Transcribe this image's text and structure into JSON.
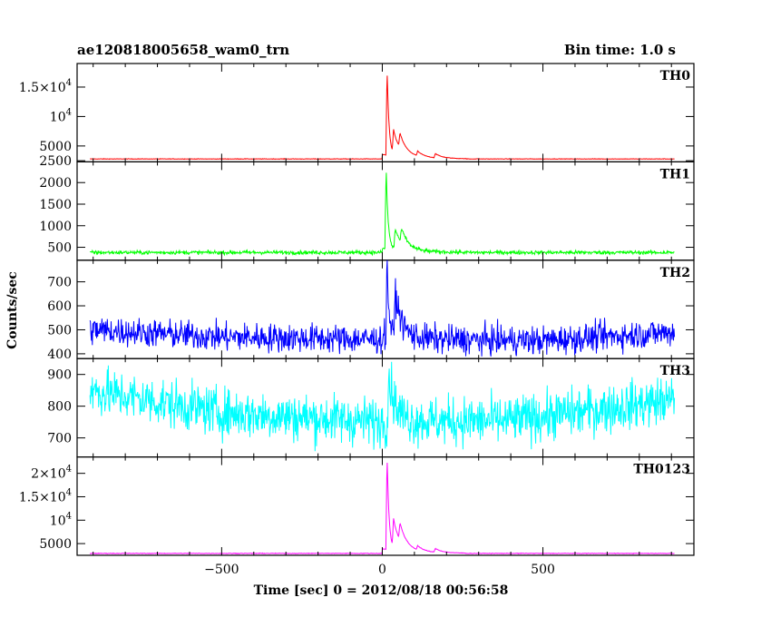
{
  "chart_data": {
    "type": "line",
    "title_left": "ae120818005658_wam0_trn",
    "title_right": "Bin time: 1.0 s",
    "xlabel": "Time [sec] 0 = 2012/08/18 00:56:58",
    "ylabel": "Counts/sec",
    "xlim": [
      -950,
      970
    ],
    "x_ticks": [
      -500,
      0,
      500
    ],
    "x_tick_labels": [
      "−500",
      "0",
      "500"
    ],
    "x_data_range": [
      -910,
      910
    ],
    "burst_time": 0,
    "grid": false,
    "panels": [
      {
        "name": "TH0",
        "color": "#ff0000",
        "ylim": [
          2300,
          19000
        ],
        "y_ticks": [
          2500,
          5000,
          10000,
          15000
        ],
        "y_tick_labels": [
          {
            "base": "2500"
          },
          {
            "base": "5000"
          },
          {
            "base": "10",
            "exp": "4"
          },
          {
            "base": "1.5×10",
            "exp": "4"
          }
        ],
        "baseline": 2800,
        "noise": 40,
        "features": [
          {
            "t": 15,
            "peak": 17500
          },
          {
            "t": 35,
            "peak": 6800
          },
          {
            "t": 55,
            "peak": 5200
          },
          {
            "t": 110,
            "peak": 3600
          },
          {
            "t": 165,
            "peak": 3500
          }
        ]
      },
      {
        "name": "TH1",
        "color": "#00ff00",
        "ylim": [
          200,
          2480
        ],
        "y_ticks": [
          500,
          1000,
          1500,
          2000
        ],
        "y_tick_labels": [
          {
            "base": "500"
          },
          {
            "base": "1000"
          },
          {
            "base": "1500"
          },
          {
            "base": "2000"
          }
        ],
        "baseline": 380,
        "noise": 40,
        "features": [
          {
            "t": 12,
            "peak": 2300
          },
          {
            "t": 40,
            "peak": 850
          },
          {
            "t": 60,
            "peak": 700
          }
        ]
      },
      {
        "name": "TH2",
        "color": "#0000ff",
        "ylim": [
          380,
          790
        ],
        "y_ticks": [
          400,
          500,
          600,
          700
        ],
        "y_tick_labels": [
          {
            "base": "400"
          },
          {
            "base": "500"
          },
          {
            "base": "600"
          },
          {
            "base": "700"
          }
        ],
        "baseline_points": [
          [
            -910,
            500
          ],
          [
            -500,
            470
          ],
          [
            0,
            460
          ],
          [
            500,
            455
          ],
          [
            910,
            490
          ]
        ],
        "noise": 55,
        "features": [
          {
            "t": 15,
            "peak": 770
          },
          {
            "t": 40,
            "peak": 640
          }
        ]
      },
      {
        "name": "TH3",
        "color": "#00ffff",
        "ylim": [
          640,
          950
        ],
        "y_ticks": [
          700,
          800,
          900
        ],
        "y_tick_labels": [
          {
            "base": "700"
          },
          {
            "base": "800"
          },
          {
            "base": "900"
          }
        ],
        "baseline_points": [
          [
            -910,
            850
          ],
          [
            -500,
            780
          ],
          [
            0,
            750
          ],
          [
            400,
            755
          ],
          [
            910,
            820
          ]
        ],
        "noise": 70,
        "features": [
          {
            "t": 20,
            "peak": 890
          }
        ]
      },
      {
        "name": "TH0123",
        "color": "#ff00ff",
        "ylim": [
          2500,
          23500
        ],
        "y_ticks": [
          5000,
          10000,
          15000,
          20000
        ],
        "y_tick_labels": [
          {
            "base": "5000"
          },
          {
            "base": "10",
            "exp": "4"
          },
          {
            "base": "1.5×10",
            "exp": "4"
          },
          {
            "base": "2×10",
            "exp": "4"
          }
        ],
        "baseline": 2900,
        "noise": 60,
        "features": [
          {
            "t": 15,
            "peak": 23000
          },
          {
            "t": 35,
            "peak": 9000
          },
          {
            "t": 55,
            "peak": 6500
          },
          {
            "t": 110,
            "peak": 3800
          },
          {
            "t": 165,
            "peak": 3700
          }
        ]
      }
    ]
  }
}
